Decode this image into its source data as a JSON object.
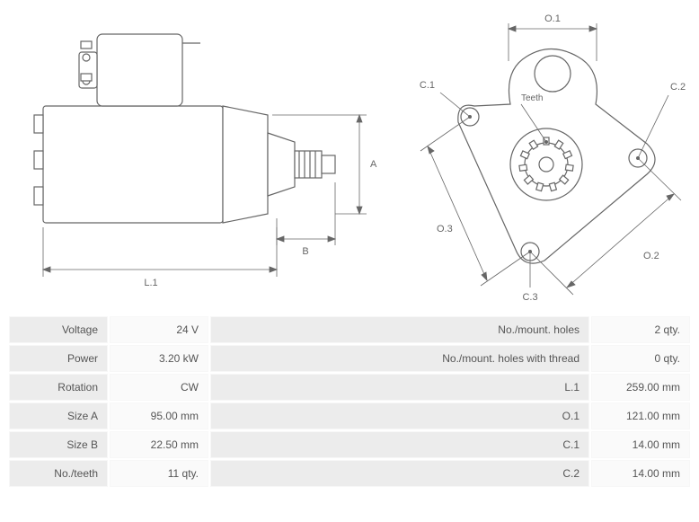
{
  "colors": {
    "stroke": "#666666",
    "fill": "#ffffff",
    "dim_text": "#666666",
    "table_cell_bg": "#ececec",
    "table_val_bg": "#fafafa"
  },
  "typography": {
    "font": "Verdana, Geneva, sans-serif",
    "table_fontsize": 12,
    "diagram_label_fontsize": 11
  },
  "side_view": {
    "labels": {
      "L1": "L.1",
      "A": "A",
      "B": "B"
    }
  },
  "front_view": {
    "labels": {
      "O1": "O.1",
      "O2": "O.2",
      "O3": "O.3",
      "C1": "C.1",
      "C2": "C.2",
      "C3": "C.3",
      "Teeth": "Teeth"
    }
  },
  "specs": {
    "rows": [
      {
        "l1": "Voltage",
        "v1": "24 V",
        "l2": "No./mount. holes",
        "v2": "2 qty."
      },
      {
        "l1": "Power",
        "v1": "3.20 kW",
        "l2": "No./mount. holes with thread",
        "v2": "0 qty."
      },
      {
        "l1": "Rotation",
        "v1": "CW",
        "l2": "L.1",
        "v2": "259.00 mm"
      },
      {
        "l1": "Size A",
        "v1": "95.00 mm",
        "l2": "O.1",
        "v2": "121.00 mm"
      },
      {
        "l1": "Size B",
        "v1": "22.50 mm",
        "l2": "C.1",
        "v2": "14.00 mm"
      },
      {
        "l1": "No./teeth",
        "v1": "11 qty.",
        "l2": "C.2",
        "v2": "14.00 mm"
      }
    ]
  }
}
